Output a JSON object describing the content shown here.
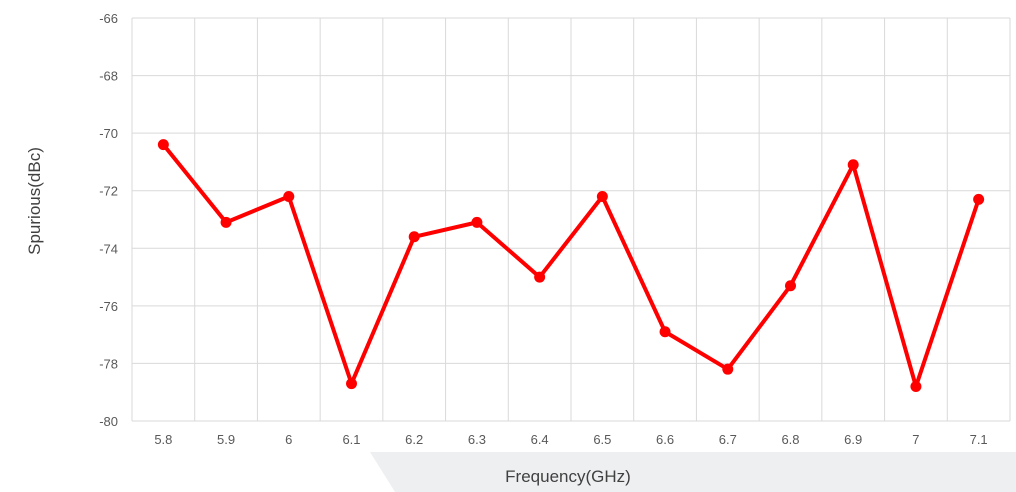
{
  "chart_data": {
    "type": "line",
    "title": "",
    "xlabel": "Frequency(GHz)",
    "ylabel": "Spurious(dBc)",
    "categories": [
      "5.8",
      "5.9",
      "6",
      "6.1",
      "6.2",
      "6.3",
      "6.4",
      "6.5",
      "6.6",
      "6.7",
      "6.8",
      "6.9",
      "7",
      "7.1"
    ],
    "series": [
      {
        "color": "#ff0000",
        "values": [
          -70.4,
          -73.1,
          -72.2,
          -78.7,
          -73.6,
          -73.1,
          -75.0,
          -72.2,
          -76.9,
          -78.2,
          -75.3,
          -71.1,
          -78.8,
          -72.3
        ]
      }
    ],
    "ylim": [
      -80,
      -66
    ],
    "yticks": [
      -66,
      -68,
      -70,
      -72,
      -74,
      -76,
      -78,
      -80
    ],
    "grid": true,
    "legend": "none"
  }
}
